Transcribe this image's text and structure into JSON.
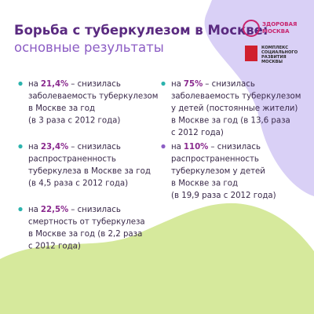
{
  "header": {
    "title": "Борьба с туберкулезом в Москве:",
    "subtitle": "основные результаты"
  },
  "logos": {
    "healthy_moscow": [
      "ЗДОРОВАЯ",
      "МОСКВА"
    ],
    "social_complex": [
      "КОМПЛЕКС",
      "СОЦИАЛЬНОГО",
      "РАЗВИТИЯ",
      "МОСКВЫ"
    ]
  },
  "items": [
    {
      "lead": "на",
      "value": "21,4%",
      "rest": "– снизилась",
      "lines": [
        "заболеваемость туберкулезом",
        "в Москве за год",
        "(в 3 раза с 2012 года)"
      ]
    },
    {
      "lead": "на",
      "value": "75%",
      "rest": "– снизилась",
      "lines": [
        "заболеваемость туберкулезом",
        "у детей (постоянные жители)",
        "в Москве за год (в 13,6 раза",
        "с 2012 года)"
      ]
    },
    {
      "lead": "на",
      "value": "23,4%",
      "rest": "– снизилась",
      "lines": [
        "распространенность",
        "туберкулеза в Москве за год",
        "(в 4,5 раза с 2012 года)"
      ]
    },
    {
      "lead": "на",
      "value": "110%",
      "rest": "– снизилась",
      "lines": [
        "распространенность",
        "туберкулезом у детей",
        "в Москве за год",
        "(в 19,9 раза с 2012 года)"
      ]
    },
    {
      "lead": "на",
      "value": "22,5%",
      "rest": "– снизилась",
      "lines": [
        "смертность от туберкулеза",
        "в Москве за год (в 2,2 раза",
        "с 2012 года)"
      ]
    }
  ]
}
